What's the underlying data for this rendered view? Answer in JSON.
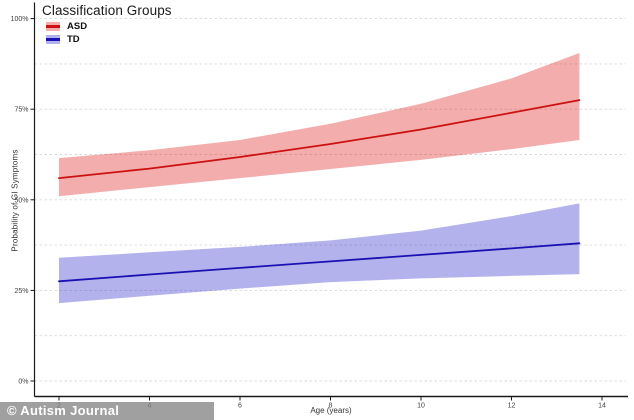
{
  "watermark": {
    "text": "© Autism Journal"
  },
  "chart_data": {
    "type": "line",
    "title": "",
    "xlabel": "Age (years)",
    "ylabel": "Probability of GI Symptoms",
    "x_ticks": [
      2,
      4,
      6,
      8,
      10,
      12,
      14
    ],
    "x_tick_labels": [
      "2",
      "4",
      "6",
      "8",
      "10",
      "12",
      "14"
    ],
    "y_ticks_pct": [
      0,
      25,
      50,
      75,
      100
    ],
    "y_tick_labels": [
      "0%",
      "25%",
      "50%",
      "75%",
      "100%"
    ],
    "gridlines_pct": [
      0,
      12.5,
      25,
      37.5,
      50,
      62.5,
      75,
      87.5,
      100
    ],
    "x_data_range": [
      2,
      13.5
    ],
    "ylim": [
      0,
      100
    ],
    "grid": "dashed",
    "legend_position": "top-left-inside",
    "legend": {
      "title": "Classification Groups",
      "items": [
        {
          "label": "ASD"
        },
        {
          "label": "TD"
        }
      ]
    },
    "series": [
      {
        "name": "ASD",
        "line_color": "#cc1111",
        "band_color": "rgba(220,20,20,0.35)",
        "x": [
          2,
          4,
          6,
          8,
          10,
          12,
          13.5
        ],
        "fit": [
          56.0,
          58.6,
          61.8,
          65.4,
          69.4,
          74.0,
          77.5
        ],
        "upper": [
          61.5,
          63.7,
          66.5,
          71.0,
          76.5,
          83.5,
          90.5
        ],
        "lower": [
          51.0,
          53.5,
          56.0,
          58.5,
          61.0,
          64.0,
          66.5
        ]
      },
      {
        "name": "TD",
        "line_color": "#1a11b3",
        "band_color": "rgba(40,35,200,0.35)",
        "x": [
          2,
          4,
          6,
          8,
          10,
          12,
          13.5
        ],
        "fit": [
          27.5,
          29.4,
          31.2,
          33.0,
          34.8,
          36.6,
          38.0
        ],
        "upper": [
          34.0,
          35.5,
          37.0,
          38.8,
          41.5,
          45.5,
          49.0
        ],
        "lower": [
          21.5,
          23.5,
          25.5,
          27.3,
          28.3,
          29.0,
          29.5
        ]
      }
    ],
    "axis_color": "#1a1a1a",
    "gridline_color": "#d8d8d8",
    "tick_label_color": "#404040"
  }
}
